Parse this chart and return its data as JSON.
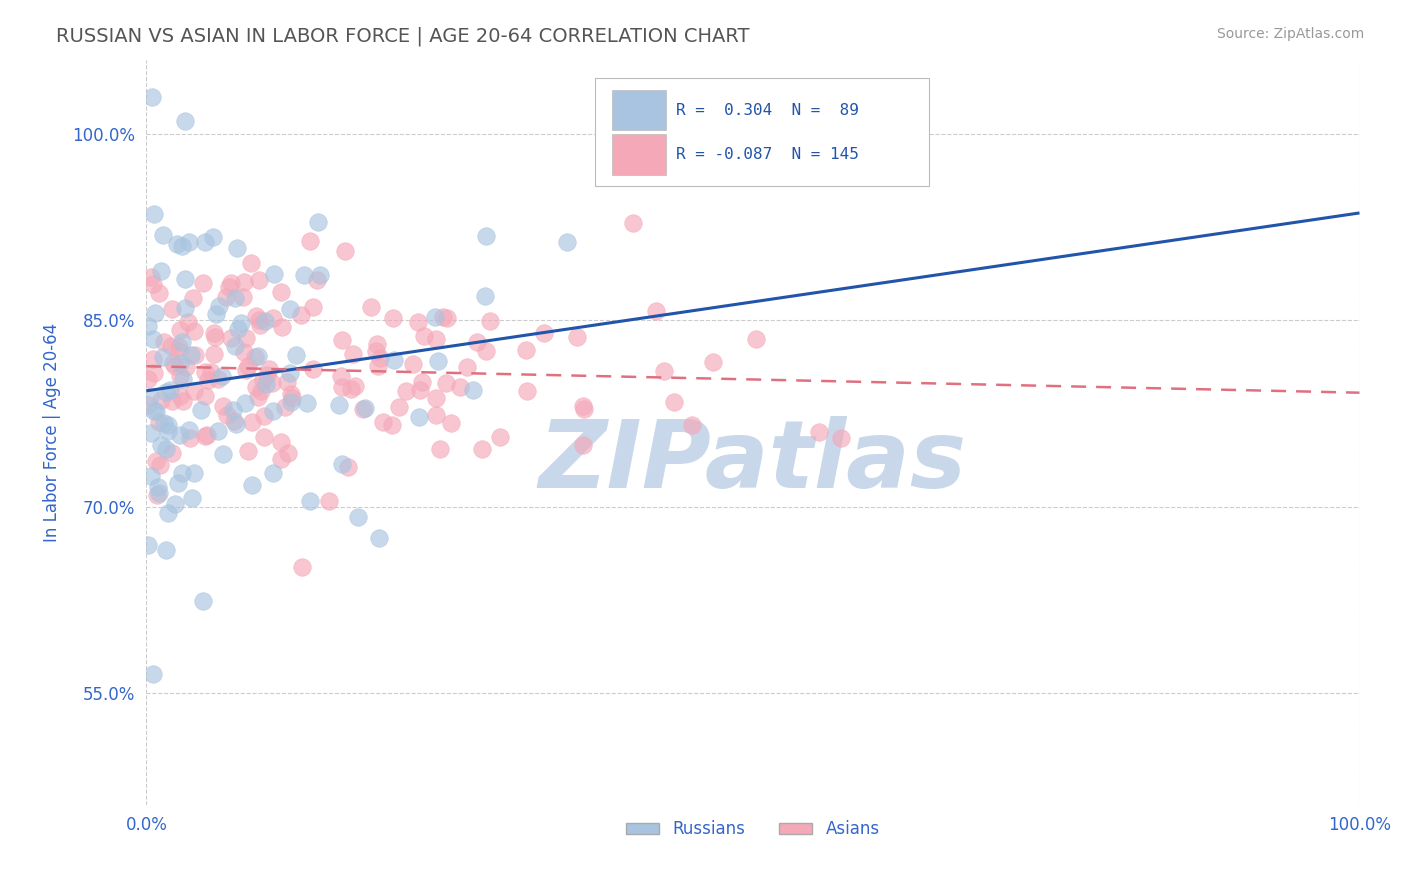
{
  "title": "RUSSIAN VS ASIAN IN LABOR FORCE | AGE 20-64 CORRELATION CHART",
  "source_text": "Source: ZipAtlas.com",
  "ylabel": "In Labor Force | Age 20-64",
  "xlim": [
    0.0,
    1.0
  ],
  "ylim": [
    0.46,
    1.06
  ],
  "yticks": [
    0.55,
    0.7,
    0.85,
    1.0
  ],
  "ytick_labels": [
    "55.0%",
    "70.0%",
    "85.0%",
    "100.0%"
  ],
  "xtick_labels": [
    "0.0%",
    "100.0%"
  ],
  "xticks": [
    0.0,
    1.0
  ],
  "russian_R": 0.304,
  "russian_N": 89,
  "asian_R": -0.087,
  "asian_N": 145,
  "russian_color": "#a8c4e0",
  "asian_color": "#f4a8b8",
  "russian_line_color": "#2255aa",
  "asian_line_color": "#e07080",
  "background_color": "#ffffff",
  "grid_color": "#cccccc",
  "watermark_color": "#c8d8ea",
  "title_color": "#555555",
  "title_fontsize": 14,
  "tick_label_color": "#3366cc",
  "legend_color": "#2255aa",
  "russians_seed": 42,
  "asians_seed": 7
}
